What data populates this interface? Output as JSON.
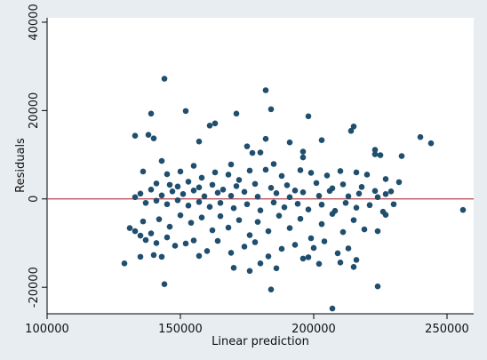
{
  "chart_data": {
    "type": "scatter",
    "title": "",
    "xlabel": "Linear prediction",
    "ylabel": "Residuals",
    "xlim": [
      100000,
      260000
    ],
    "ylim": [
      -26000,
      41000
    ],
    "x_ticks": [
      100000,
      150000,
      200000,
      250000
    ],
    "x_tick_labels": [
      "100000",
      "150000",
      "200000",
      "250000"
    ],
    "y_ticks": [
      -20000,
      0,
      20000,
      40000
    ],
    "y_tick_labels": [
      "-20000",
      "0",
      "20000",
      "40000"
    ],
    "reference_line": {
      "y": 0,
      "color": "#b5474f"
    },
    "grid": false,
    "legend": "none",
    "colors": {
      "marker": "#1f4e6e",
      "plot_background": "#ffffff",
      "outer_background": "#e8edf1"
    },
    "series": [
      {
        "points": [
          [
            144000,
            27200
          ],
          [
            182000,
            24600
          ],
          [
            184000,
            20300
          ],
          [
            152000,
            19900
          ],
          [
            139000,
            19300
          ],
          [
            171000,
            19300
          ],
          [
            198000,
            18700
          ],
          [
            133000,
            14300
          ],
          [
            138000,
            14500
          ],
          [
            140000,
            13700
          ],
          [
            161000,
            16600
          ],
          [
            163000,
            17100
          ],
          [
            215000,
            16400
          ],
          [
            214000,
            15400
          ],
          [
            240000,
            14000
          ],
          [
            244000,
            12600
          ],
          [
            223000,
            11100
          ],
          [
            203000,
            13300
          ],
          [
            175000,
            11900
          ],
          [
            157000,
            13000
          ],
          [
            191000,
            12800
          ],
          [
            182000,
            13600
          ],
          [
            180000,
            10500
          ],
          [
            177000,
            10400
          ],
          [
            196000,
            10700
          ],
          [
            223000,
            10100
          ],
          [
            225000,
            9900
          ],
          [
            233000,
            9700
          ],
          [
            196000,
            9400
          ],
          [
            169000,
            7800
          ],
          [
            185000,
            7900
          ],
          [
            176000,
            6400
          ],
          [
            143000,
            8600
          ],
          [
            136000,
            6200
          ],
          [
            145000,
            5600
          ],
          [
            150000,
            6200
          ],
          [
            155000,
            7500
          ],
          [
            158000,
            4800
          ],
          [
            163000,
            6000
          ],
          [
            168000,
            5500
          ],
          [
            172000,
            4300
          ],
          [
            182000,
            6600
          ],
          [
            188000,
            5200
          ],
          [
            195000,
            6500
          ],
          [
            199000,
            5900
          ],
          [
            205000,
            5300
          ],
          [
            210000,
            6300
          ],
          [
            216000,
            6000
          ],
          [
            220000,
            5500
          ],
          [
            227000,
            4500
          ],
          [
            232000,
            3800
          ],
          [
            141000,
            3500
          ],
          [
            146000,
            3200
          ],
          [
            149000,
            2800
          ],
          [
            153000,
            3900
          ],
          [
            157000,
            2600
          ],
          [
            162000,
            3200
          ],
          [
            166000,
            2100
          ],
          [
            171000,
            2900
          ],
          [
            178000,
            3400
          ],
          [
            184000,
            2500
          ],
          [
            190000,
            3100
          ],
          [
            193000,
            1900
          ],
          [
            201000,
            3600
          ],
          [
            207000,
            2400
          ],
          [
            211000,
            3300
          ],
          [
            218000,
            2700
          ],
          [
            223000,
            1800
          ],
          [
            229000,
            1700
          ],
          [
            135000,
            1200
          ],
          [
            139000,
            2100
          ],
          [
            143000,
            800
          ],
          [
            147000,
            1700
          ],
          [
            151000,
            1100
          ],
          [
            155000,
            1900
          ],
          [
            159000,
            600
          ],
          [
            164000,
            1400
          ],
          [
            169000,
            700
          ],
          [
            174000,
            1600
          ],
          [
            179000,
            500
          ],
          [
            186000,
            1300
          ],
          [
            191000,
            400
          ],
          [
            196000,
            1500
          ],
          [
            202000,
            700
          ],
          [
            206000,
            1800
          ],
          [
            213000,
            600
          ],
          [
            217000,
            1200
          ],
          [
            224000,
            400
          ],
          [
            227000,
            1100
          ],
          [
            133000,
            400
          ],
          [
            137000,
            -900
          ],
          [
            141000,
            -400
          ],
          [
            145000,
            -1200
          ],
          [
            149000,
            -300
          ],
          [
            153000,
            -1500
          ],
          [
            157000,
            -700
          ],
          [
            161000,
            -1800
          ],
          [
            165000,
            -900
          ],
          [
            170000,
            -2100
          ],
          [
            175000,
            -1200
          ],
          [
            180000,
            -2600
          ],
          [
            185000,
            -800
          ],
          [
            189000,
            -1900
          ],
          [
            194000,
            -1100
          ],
          [
            198000,
            -2400
          ],
          [
            203000,
            -1300
          ],
          [
            208000,
            -2700
          ],
          [
            212000,
            -900
          ],
          [
            216000,
            -2000
          ],
          [
            221000,
            -1400
          ],
          [
            226000,
            -2900
          ],
          [
            230000,
            -1200
          ],
          [
            256000,
            -2500
          ],
          [
            131000,
            -6600
          ],
          [
            133000,
            -7300
          ],
          [
            136000,
            -5100
          ],
          [
            139000,
            -7800
          ],
          [
            142000,
            -4600
          ],
          [
            146000,
            -6300
          ],
          [
            150000,
            -3700
          ],
          [
            154000,
            -5400
          ],
          [
            158000,
            -4200
          ],
          [
            162000,
            -7100
          ],
          [
            165000,
            -3900
          ],
          [
            168000,
            -6500
          ],
          [
            172000,
            -4800
          ],
          [
            176000,
            -8200
          ],
          [
            179000,
            -5200
          ],
          [
            183000,
            -7300
          ],
          [
            187000,
            -3800
          ],
          [
            191000,
            -6600
          ],
          [
            195000,
            -4500
          ],
          [
            199000,
            -8900
          ],
          [
            203000,
            -5700
          ],
          [
            207000,
            -3400
          ],
          [
            211000,
            -7500
          ],
          [
            215000,
            -4800
          ],
          [
            219000,
            -6900
          ],
          [
            224000,
            -7300
          ],
          [
            227000,
            -3600
          ],
          [
            135000,
            -8300
          ],
          [
            137000,
            -9300
          ],
          [
            141000,
            -10000
          ],
          [
            145000,
            -8700
          ],
          [
            148000,
            -10600
          ],
          [
            152000,
            -10100
          ],
          [
            155000,
            -9400
          ],
          [
            160000,
            -11800
          ],
          [
            164000,
            -9500
          ],
          [
            169000,
            -12200
          ],
          [
            174000,
            -10800
          ],
          [
            178000,
            -9800
          ],
          [
            183000,
            -13000
          ],
          [
            188000,
            -11300
          ],
          [
            193000,
            -10400
          ],
          [
            196000,
            -13500
          ],
          [
            200000,
            -11100
          ],
          [
            204000,
            -9600
          ],
          [
            209000,
            -12300
          ],
          [
            213000,
            -11200
          ],
          [
            216000,
            -13800
          ],
          [
            129000,
            -14600
          ],
          [
            135000,
            -13100
          ],
          [
            140000,
            -12700
          ],
          [
            143000,
            -13100
          ],
          [
            157000,
            -12900
          ],
          [
            170000,
            -15600
          ],
          [
            176000,
            -16300
          ],
          [
            180000,
            -14600
          ],
          [
            186000,
            -15700
          ],
          [
            198000,
            -13200
          ],
          [
            202000,
            -14700
          ],
          [
            210000,
            -14400
          ],
          [
            215000,
            -15400
          ],
          [
            144000,
            -19300
          ],
          [
            184000,
            -20500
          ],
          [
            224000,
            -19800
          ],
          [
            207000,
            -24800
          ]
        ]
      }
    ]
  }
}
